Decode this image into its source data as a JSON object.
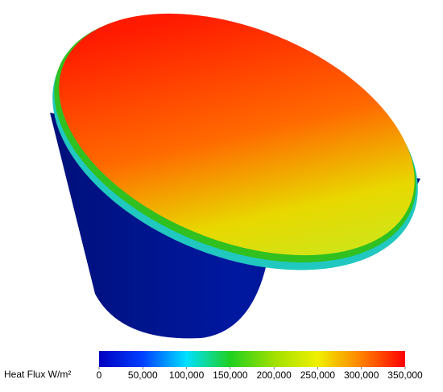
{
  "colorbar": {
    "label": "Heat Flux W/m²",
    "range": [
      0,
      350000
    ],
    "ticks": [
      0,
      {
        "value": 50000,
        "label": "50,000"
      },
      {
        "value": 100000,
        "label": "100,000"
      },
      {
        "value": 150000,
        "label": "150,000"
      },
      {
        "value": 200000,
        "label": "200,000"
      },
      {
        "value": 250000,
        "label": "250,000"
      },
      {
        "value": 300000,
        "label": "300,000"
      },
      {
        "value": 350000,
        "label": "350,000"
      }
    ],
    "colors": [
      "#0000c0",
      "#0040ff",
      "#00e0ff",
      "#20d020",
      "#a0e000",
      "#f0f000",
      "#ff8000",
      "#ff0000"
    ]
  }
}
